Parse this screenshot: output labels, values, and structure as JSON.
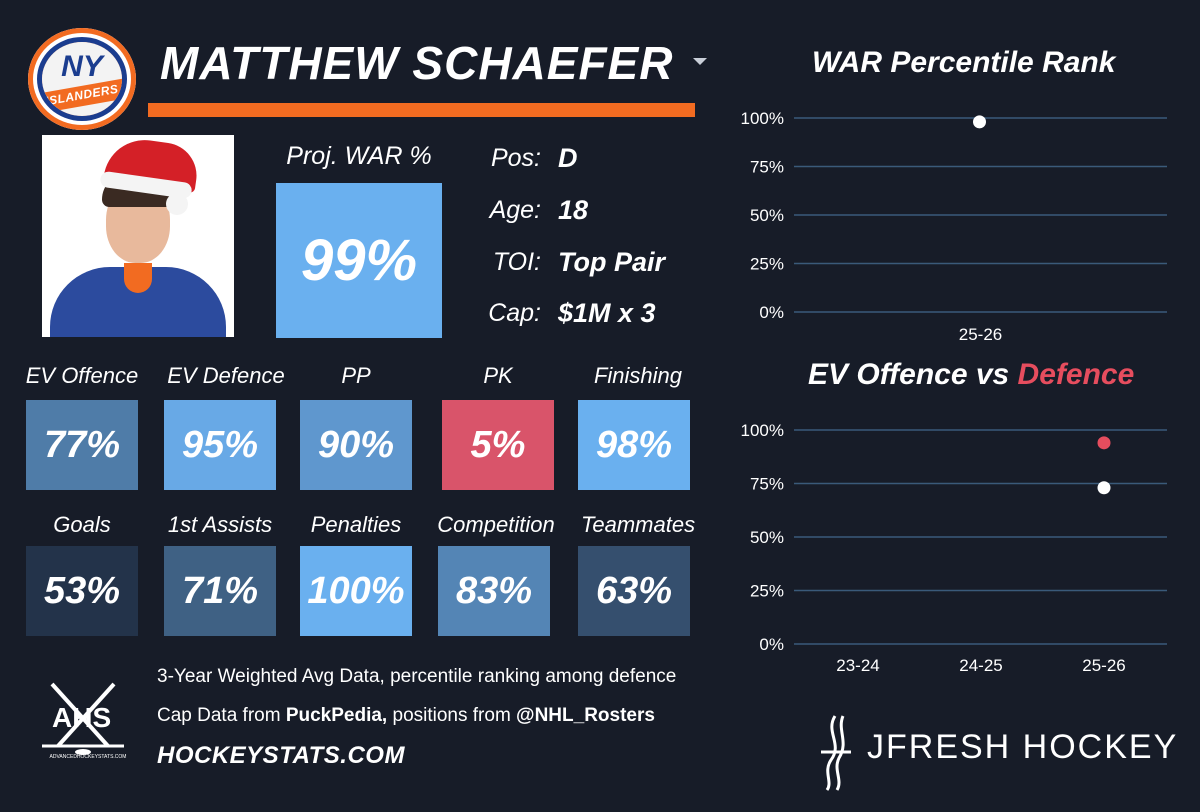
{
  "player": {
    "name": "MATTHEW SCHAEFER",
    "team_logo_text_1": "NY",
    "team_logo_text_2": "ISLANDERS"
  },
  "proj_war": {
    "label": "Proj. WAR %",
    "value": "99%"
  },
  "info": [
    {
      "label": "Pos:",
      "value": "D"
    },
    {
      "label": "Age:",
      "value": "18"
    },
    {
      "label": "TOI:",
      "value": "Top Pair"
    },
    {
      "label": "Cap:",
      "value": "$1M x 3"
    }
  ],
  "tiles": [
    {
      "label": "EV Offence",
      "value": "77%",
      "color": "#4f7ca8"
    },
    {
      "label": "EV Defence",
      "value": "95%",
      "color": "#68a9e6"
    },
    {
      "label": "PP",
      "value": "90%",
      "color": "#5f97ce"
    },
    {
      "label": "PK",
      "value": "5%",
      "color": "#d9546a"
    },
    {
      "label": "Finishing",
      "value": "98%",
      "color": "#6ab0ef"
    },
    {
      "label": "Goals",
      "value": "53%",
      "color": "#23334a"
    },
    {
      "label": "1st Assists",
      "value": "71%",
      "color": "#3f6184"
    },
    {
      "label": "Penalties",
      "value": "100%",
      "color": "#6ab0ef"
    },
    {
      "label": "Competition",
      "value": "83%",
      "color": "#5485b5"
    },
    {
      "label": "Teammates",
      "value": "63%",
      "color": "#354f6e"
    }
  ],
  "footer": {
    "line1": "3-Year Weighted Avg Data, percentile ranking among defence",
    "line2_a": "Cap Data from ",
    "line2_b": "PuckPedia,",
    "line2_c": " positions from ",
    "line2_d": "@NHL_Rosters",
    "site": "HOCKEYSTATS.COM",
    "ahs_logo": "AHS",
    "ahs_sub": "ADVANCEDHOCKEYSTATS.COM",
    "brand": "JFRESH HOCKEY"
  },
  "colors": {
    "background": "#171c28",
    "accent": "#f26b21",
    "blue": "#6ab0ef",
    "red": "#e64d5e",
    "grid": "#3a5a7a"
  },
  "chart_data": [
    {
      "type": "scatter",
      "title": "WAR Percentile Rank",
      "categories": [
        "25-26"
      ],
      "series": [
        {
          "values": [
            98
          ],
          "color": "#ffffff"
        }
      ],
      "yticks": [
        "100%",
        "75%",
        "50%",
        "25%",
        "0%"
      ],
      "ylim": [
        0,
        100
      ],
      "grid": true
    },
    {
      "type": "scatter",
      "title_part1": "EV Offence vs ",
      "title_part2": "Defence",
      "categories": [
        "23-24",
        "24-25",
        "25-26"
      ],
      "series": [
        {
          "values": [
            null,
            null,
            73
          ],
          "color": "#ffffff"
        },
        {
          "values": [
            null,
            null,
            94
          ],
          "color": "#e64d5e"
        }
      ],
      "yticks": [
        "100%",
        "75%",
        "50%",
        "25%",
        "0%"
      ],
      "ylim": [
        0,
        100
      ],
      "grid": true
    }
  ]
}
